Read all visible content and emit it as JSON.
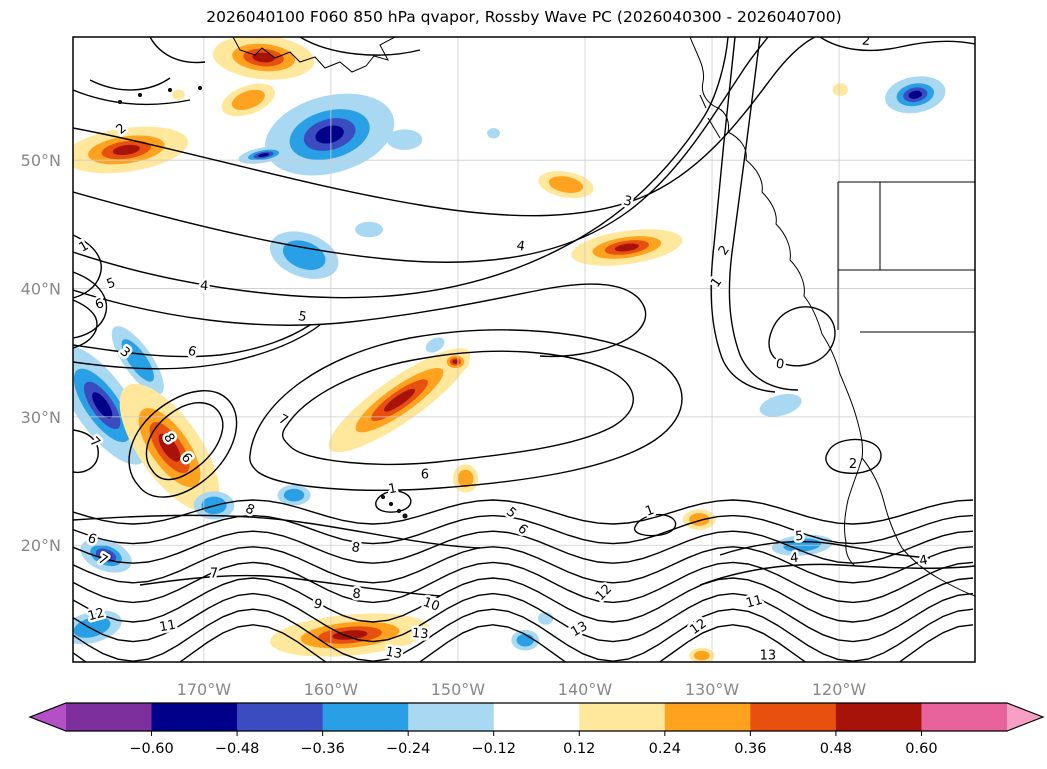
{
  "title": "2026040100 F060 850 hPa qvapor, Rossby Wave PC (2026040300 - 2026040700)",
  "map": {
    "x_ticks": [
      {
        "lon": -170,
        "label": "170°W"
      },
      {
        "lon": -160,
        "label": "160°W"
      },
      {
        "lon": -150,
        "label": "150°W"
      },
      {
        "lon": -140,
        "label": "140°W"
      },
      {
        "lon": -130,
        "label": "130°W"
      },
      {
        "lon": -120,
        "label": "120°W"
      }
    ],
    "y_ticks": [
      {
        "lat": 50,
        "label": "50°N"
      },
      {
        "lat": 40,
        "label": "40°N"
      },
      {
        "lat": 30,
        "label": "30°N"
      },
      {
        "lat": 20,
        "label": "20°N"
      }
    ],
    "tick_label_color": "#888888",
    "grid_color": "#cccccc"
  },
  "colorbar": {
    "tick_labels": [
      "−0.60",
      "−0.48",
      "−0.36",
      "−0.24",
      "−0.12",
      "0.12",
      "0.24",
      "0.36",
      "0.48",
      "0.60"
    ],
    "tick_values": [
      -0.6,
      -0.48,
      -0.36,
      -0.24,
      -0.12,
      0.12,
      0.24,
      0.36,
      0.48,
      0.6
    ],
    "segment_colors": [
      "#7e2f9e",
      "#00008b",
      "#3b4cc0",
      "#29a0e6",
      "#a8d8f2",
      "#ffffff",
      "#ffe79c",
      "#ffa21f",
      "#e8500f",
      "#a81309",
      "#e8639c"
    ],
    "arrow_left_color": "#b350c6",
    "arrow_right_color": "#f79fc5"
  },
  "chart_data": {
    "type": "heatmap",
    "subtype": "filled-contour anomaly shading with labeled line contours over a Pacific / North America map",
    "title": "2026040100 F060 850 hPa qvapor, Rossby Wave PC (2026040300 - 2026040700)",
    "x_axis": {
      "label": "longitude",
      "tick_labels": [
        "170°W",
        "160°W",
        "150°W",
        "140°W",
        "130°W",
        "120°W"
      ]
    },
    "y_axis": {
      "label": "latitude",
      "tick_labels": [
        "50°N",
        "40°N",
        "30°N",
        "20°N"
      ]
    },
    "map_extent": {
      "lon_min": -180.3,
      "lon_max": -109.3,
      "lat_min": 10.9,
      "lat_max": 59.6
    },
    "shading_levels": [
      -0.6,
      -0.48,
      -0.36,
      -0.24,
      -0.12,
      0.12,
      0.24,
      0.36,
      0.48,
      0.6
    ],
    "line_contour_levels_visible": [
      0,
      1,
      2,
      3,
      4,
      5,
      6,
      7,
      8,
      9,
      10,
      11,
      12,
      13
    ],
    "line_contour_levels_south": [
      5,
      6,
      7,
      8,
      9,
      10,
      11,
      12,
      13
    ],
    "contour_labels": [
      {
        "v": "2",
        "lon": -176.3,
        "lat": 52.2,
        "rot": -40
      },
      {
        "v": "2",
        "lon": -117.9,
        "lat": 59.0,
        "rot": 5
      },
      {
        "v": "3",
        "lon": -136.7,
        "lat": 46.5,
        "rot": 12
      },
      {
        "v": "4",
        "lon": -145.1,
        "lat": 43.0,
        "rot": 8
      },
      {
        "v": "2",
        "lon": -128.8,
        "lat": 42.8,
        "rot": -55
      },
      {
        "v": "1",
        "lon": -129.4,
        "lat": 40.3,
        "rot": -55
      },
      {
        "v": "5",
        "lon": -162.3,
        "lat": 37.5,
        "rot": 10
      },
      {
        "v": "6",
        "lon": -171.0,
        "lat": 34.8,
        "rot": 15
      },
      {
        "v": "3",
        "lon": -176.4,
        "lat": 34.8,
        "rot": 40
      },
      {
        "v": "1",
        "lon": -179.3,
        "lat": 43.0,
        "rot": -30
      },
      {
        "v": "5",
        "lon": -177.2,
        "lat": 40.1,
        "rot": -20
      },
      {
        "v": "6",
        "lon": -178.1,
        "lat": 38.5,
        "rot": -20
      },
      {
        "v": "4",
        "lon": -170.0,
        "lat": 39.9,
        "rot": 5
      },
      {
        "v": "0",
        "lon": -124.7,
        "lat": 33.8,
        "rot": 10
      },
      {
        "v": "7",
        "lon": -178.8,
        "lat": 27.8,
        "rot": 45
      },
      {
        "v": "8",
        "lon": -173.0,
        "lat": 28.2,
        "rot": 60
      },
      {
        "v": "6",
        "lon": -171.6,
        "lat": 26.6,
        "rot": 50
      },
      {
        "v": "7",
        "lon": -163.9,
        "lat": 29.5,
        "rot": 30
      },
      {
        "v": "2",
        "lon": -118.9,
        "lat": 26.0,
        "rot": 0
      },
      {
        "v": "1",
        "lon": -155.1,
        "lat": 24.1,
        "rot": -10
      },
      {
        "v": "6",
        "lon": -152.6,
        "lat": 25.2,
        "rot": 0
      },
      {
        "v": "6",
        "lon": -178.9,
        "lat": 20.2,
        "rot": 20
      },
      {
        "v": "7",
        "lon": -178.1,
        "lat": 18.6,
        "rot": 30
      },
      {
        "v": "8",
        "lon": -166.5,
        "lat": 22.5,
        "rot": 25
      },
      {
        "v": "5",
        "lon": -146.0,
        "lat": 22.3,
        "rot": 40
      },
      {
        "v": "6",
        "lon": -145.1,
        "lat": 21.0,
        "rot": 40
      },
      {
        "v": "8",
        "lon": -158.1,
        "lat": 19.5,
        "rot": 10
      },
      {
        "v": "7",
        "lon": -169.2,
        "lat": 17.5,
        "rot": 0
      },
      {
        "v": "8",
        "lon": -158.0,
        "lat": 15.9,
        "rot": 5
      },
      {
        "v": "9",
        "lon": -161.1,
        "lat": 15.1,
        "rot": 15
      },
      {
        "v": "10",
        "lon": -152.2,
        "lat": 15.1,
        "rot": 20
      },
      {
        "v": "12",
        "lon": -178.4,
        "lat": 14.3,
        "rot": -15
      },
      {
        "v": "11",
        "lon": -172.8,
        "lat": 13.4,
        "rot": -10
      },
      {
        "v": "13",
        "lon": -153.0,
        "lat": 12.8,
        "rot": 5
      },
      {
        "v": "13",
        "lon": -155.1,
        "lat": 11.3,
        "rot": 10
      },
      {
        "v": "12",
        "lon": -138.3,
        "lat": 16.1,
        "rot": -45
      },
      {
        "v": "13",
        "lon": -140.3,
        "lat": 13.2,
        "rot": -30
      },
      {
        "v": "12",
        "lon": -130.9,
        "lat": 13.4,
        "rot": -35
      },
      {
        "v": "11",
        "lon": -126.6,
        "lat": 15.3,
        "rot": -15
      },
      {
        "v": "13",
        "lon": -125.6,
        "lat": 11.1,
        "rot": 0
      },
      {
        "v": "5",
        "lon": -123.1,
        "lat": 20.4,
        "rot": -5
      },
      {
        "v": "4",
        "lon": -123.5,
        "lat": 18.7,
        "rot": -5
      },
      {
        "v": "4",
        "lon": -113.3,
        "lat": 18.5,
        "rot": -10
      },
      {
        "v": "1",
        "lon": -134.8,
        "lat": 22.4,
        "rot": -20
      }
    ],
    "anomaly_regions": [
      {
        "lon": -165.3,
        "lat": 58.0,
        "rlon": 4.0,
        "rlat": 1.7,
        "rot": 5,
        "peak": 0.62
      },
      {
        "lon": -166.5,
        "lat": 54.7,
        "rlon": 2.2,
        "rlat": 1.1,
        "rot": -20,
        "peak": 0.35
      },
      {
        "lon": -176.1,
        "lat": 50.8,
        "rlon": 4.9,
        "rlat": 1.7,
        "rot": -8,
        "peak": 0.5
      },
      {
        "lon": -160.1,
        "lat": 52.0,
        "rlon": 5.2,
        "rlat": 3.0,
        "rot": -15,
        "peak": -0.5
      },
      {
        "lon": -165.3,
        "lat": 50.4,
        "rlon": 2.0,
        "rlat": 0.6,
        "rot": -10,
        "peak": -0.62
      },
      {
        "lon": -154.2,
        "lat": 51.6,
        "rlon": 1.4,
        "rlat": 0.8,
        "rot": 0,
        "peak": -0.2
      },
      {
        "lon": -162.1,
        "lat": 42.6,
        "rlon": 2.8,
        "rlat": 1.7,
        "rot": 20,
        "peak": -0.35
      },
      {
        "lon": -157.0,
        "lat": 44.6,
        "rlon": 1.1,
        "rlat": 0.6,
        "rot": 0,
        "peak": -0.2
      },
      {
        "lon": -141.5,
        "lat": 48.1,
        "rlon": 2.2,
        "rlat": 1.0,
        "rot": 10,
        "peak": 0.35
      },
      {
        "lon": -136.7,
        "lat": 43.2,
        "rlon": 4.4,
        "rlat": 1.3,
        "rot": -8,
        "peak": 0.5
      },
      {
        "lon": -178.0,
        "lat": 30.9,
        "rlon": 5.5,
        "rlat": 2.1,
        "rot": 55,
        "peak": -0.62
      },
      {
        "lon": -175.2,
        "lat": 34.4,
        "rlon": 3.2,
        "rlat": 1.1,
        "rot": 55,
        "peak": -0.35
      },
      {
        "lon": -172.7,
        "lat": 27.6,
        "rlon": 5.9,
        "rlat": 2.4,
        "rot": 55,
        "peak": 0.62
      },
      {
        "lon": -154.6,
        "lat": 31.3,
        "rlon": 6.7,
        "rlat": 1.7,
        "rot": -35,
        "peak": 0.5
      },
      {
        "lon": -150.2,
        "lat": 34.3,
        "rlon": 1.1,
        "rlat": 0.8,
        "rot": 0,
        "peak": 0.5
      },
      {
        "lon": -149.4,
        "lat": 25.2,
        "rlon": 1.0,
        "rlat": 1.1,
        "rot": 0,
        "peak": 0.35
      },
      {
        "lon": -169.2,
        "lat": 23.1,
        "rlon": 1.6,
        "rlat": 1.1,
        "rot": 0,
        "peak": -0.35
      },
      {
        "lon": -162.9,
        "lat": 23.9,
        "rlon": 1.3,
        "rlat": 0.8,
        "rot": 0,
        "peak": -0.3
      },
      {
        "lon": -177.7,
        "lat": 19.2,
        "rlon": 2.1,
        "rlat": 1.2,
        "rot": 20,
        "peak": -0.62
      },
      {
        "lon": -178.8,
        "lat": 13.6,
        "rlon": 2.4,
        "rlat": 1.2,
        "rot": -15,
        "peak": -0.35
      },
      {
        "lon": -158.5,
        "lat": 13.0,
        "rlon": 6.3,
        "rlat": 1.6,
        "rot": -5,
        "peak": 0.55
      },
      {
        "lon": -144.7,
        "lat": 12.6,
        "rlon": 1.1,
        "rlat": 0.8,
        "rot": 0,
        "peak": -0.25
      },
      {
        "lon": -143.1,
        "lat": 14.3,
        "rlon": 0.6,
        "rlat": 0.5,
        "rot": 0,
        "peak": -0.2
      },
      {
        "lon": -131.0,
        "lat": 22.0,
        "rlon": 1.3,
        "rlat": 0.8,
        "rot": 0,
        "peak": 0.35
      },
      {
        "lon": -130.8,
        "lat": 11.4,
        "rlon": 1.0,
        "rlat": 0.6,
        "rot": 0,
        "peak": 0.35
      },
      {
        "lon": -122.9,
        "lat": 20.0,
        "rlon": 2.4,
        "rlat": 0.8,
        "rot": -5,
        "peak": -0.35
      },
      {
        "lon": -124.6,
        "lat": 30.9,
        "rlon": 1.7,
        "rlat": 0.8,
        "rot": -15,
        "peak": -0.2
      },
      {
        "lon": -114.0,
        "lat": 55.1,
        "rlon": 2.4,
        "rlat": 1.4,
        "rot": -10,
        "peak": -0.5
      },
      {
        "lon": -119.9,
        "lat": 55.5,
        "rlon": 0.6,
        "rlat": 0.5,
        "rot": 0,
        "peak": 0.2
      },
      {
        "lon": -172.0,
        "lat": 55.1,
        "rlon": 0.5,
        "rlat": 0.4,
        "rot": 0,
        "peak": 0.2
      },
      {
        "lon": -147.2,
        "lat": 52.1,
        "rlon": 0.5,
        "rlat": 0.4,
        "rot": 0,
        "peak": -0.2
      },
      {
        "lon": -151.8,
        "lat": 35.6,
        "rlon": 0.8,
        "rlat": 0.5,
        "rot": -30,
        "peak": -0.2
      }
    ]
  }
}
